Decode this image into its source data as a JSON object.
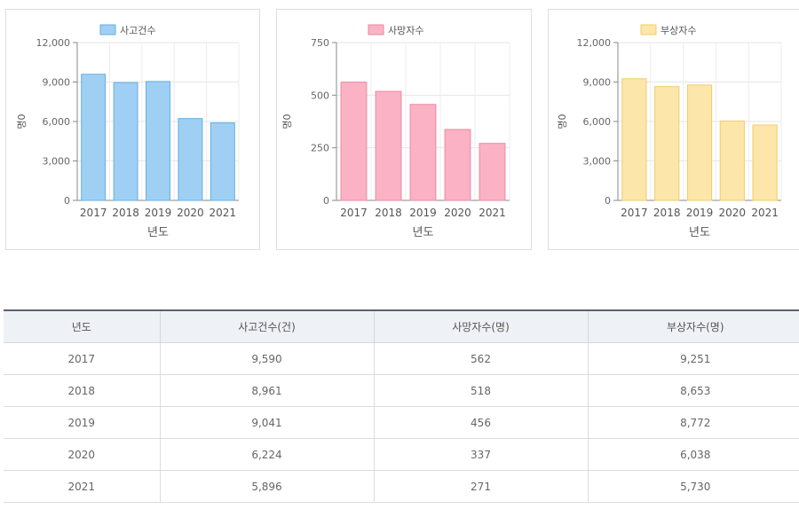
{
  "chart_data": [
    {
      "type": "bar",
      "title": "",
      "xlabel": "년도",
      "ylabel": "명0",
      "categories": [
        "2017",
        "2018",
        "2019",
        "2020",
        "2021"
      ],
      "series": [
        {
          "name": "사고건수",
          "values": [
            9590,
            8961,
            9041,
            6224,
            5896
          ]
        }
      ],
      "ylim": [
        0,
        12000
      ],
      "yticks": [
        "0",
        "3,000",
        "6,000",
        "9,000",
        "12,000"
      ],
      "tickvals": [
        0,
        3000,
        6000,
        9000,
        12000
      ],
      "legend": "top-center",
      "grid": true,
      "fill": "#9fd0f3",
      "stroke": "#64aee3"
    },
    {
      "type": "bar",
      "title": "",
      "xlabel": "년도",
      "ylabel": "명0",
      "categories": [
        "2017",
        "2018",
        "2019",
        "2020",
        "2021"
      ],
      "series": [
        {
          "name": "사망자수",
          "values": [
            562,
            518,
            456,
            337,
            271
          ]
        }
      ],
      "ylim": [
        0,
        750
      ],
      "yticks": [
        "0",
        "250",
        "500",
        "750"
      ],
      "tickvals": [
        0,
        250,
        500,
        750
      ],
      "legend": "top-center",
      "grid": true,
      "fill": "#fbb2c4",
      "stroke": "#ea8aa3"
    },
    {
      "type": "bar",
      "title": "",
      "xlabel": "년도",
      "ylabel": "명0",
      "categories": [
        "2017",
        "2018",
        "2019",
        "2020",
        "2021"
      ],
      "series": [
        {
          "name": "부상자수",
          "values": [
            9251,
            8653,
            8772,
            6038,
            5730
          ]
        }
      ],
      "ylim": [
        0,
        12000
      ],
      "yticks": [
        "0",
        "3,000",
        "6,000",
        "9,000",
        "12,000"
      ],
      "tickvals": [
        0,
        3000,
        6000,
        9000,
        12000
      ],
      "legend": "top-center",
      "grid": true,
      "fill": "#fce6a9",
      "stroke": "#f1cd6b"
    }
  ],
  "table": {
    "headers": [
      "년도",
      "사고건수(건)",
      "사망자수(명)",
      "부상자수(명)"
    ],
    "rows": [
      [
        "2017",
        "9,590",
        "562",
        "9,251"
      ],
      [
        "2018",
        "8,961",
        "518",
        "8,653"
      ],
      [
        "2019",
        "9,041",
        "456",
        "8,772"
      ],
      [
        "2020",
        "6,224",
        "337",
        "6,038"
      ],
      [
        "2021",
        "5,896",
        "271",
        "5,730"
      ]
    ]
  }
}
